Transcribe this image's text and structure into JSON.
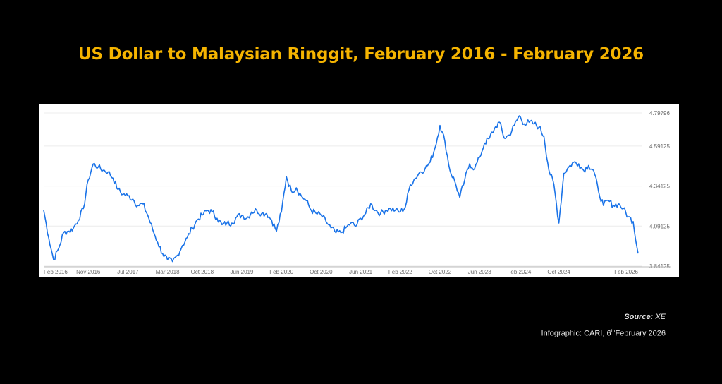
{
  "title": "US Dollar to Malaysian Ringgit, February 2016 - February 2026",
  "colors": {
    "background": "#000000",
    "title": "#f5b400",
    "panel": "#ffffff",
    "line": "#1a73e8",
    "grid": "#ececec",
    "tick_text": "#6b6b6b",
    "footer_text": "#e8e8e8"
  },
  "source": {
    "label": "Source:",
    "value": "XE"
  },
  "credit": {
    "prefix": "Infographic: CARI, 6",
    "suffix": "th",
    "rest": "February 2026"
  },
  "chart_data": {
    "type": "line",
    "title": "US Dollar to Malaysian Ringgit, February 2016 - February 2026",
    "xlabel": "",
    "ylabel": "",
    "grid": true,
    "y_axis_position": "right",
    "ylim": [
      3.84125,
      4.79796
    ],
    "yticks": [
      3.84125,
      4.09125,
      4.34125,
      4.59125,
      4.79796
    ],
    "ytick_labels": [
      "3.84125",
      "4.09125",
      "4.34125",
      "4.59125",
      "4.79796"
    ],
    "xticks": [
      {
        "label": "Feb 2016",
        "x": "2016-02"
      },
      {
        "label": "Nov 2016",
        "x": "2016-11"
      },
      {
        "label": "Jul 2017",
        "x": "2017-07"
      },
      {
        "label": "Mar 2018",
        "x": "2018-03"
      },
      {
        "label": "Oct 2018",
        "x": "2018-10"
      },
      {
        "label": "Jun 2019",
        "x": "2019-06"
      },
      {
        "label": "Feb 2020",
        "x": "2020-02"
      },
      {
        "label": "Oct 2020",
        "x": "2020-10"
      },
      {
        "label": "Jun 2021",
        "x": "2021-06"
      },
      {
        "label": "Feb 2022",
        "x": "2022-02"
      },
      {
        "label": "Oct 2022",
        "x": "2022-10"
      },
      {
        "label": "Jun 2023",
        "x": "2023-06"
      },
      {
        "label": "Feb 2024",
        "x": "2024-02"
      },
      {
        "label": "Oct 2024",
        "x": "2024-10"
      },
      {
        "label": "Feb 2026",
        "x": "2026-02"
      }
    ],
    "series": [
      {
        "x": [
          "2016-02",
          "2016-03",
          "2016-04",
          "2016-05",
          "2016-06",
          "2016-07",
          "2016-08",
          "2016-09",
          "2016-10",
          "2016-11",
          "2016-12",
          "2017-01",
          "2017-02",
          "2017-03",
          "2017-04",
          "2017-05",
          "2017-06",
          "2017-07",
          "2017-08",
          "2017-09",
          "2017-10",
          "2017-11",
          "2017-12",
          "2018-01",
          "2018-02",
          "2018-03",
          "2018-04",
          "2018-05",
          "2018-06",
          "2018-07",
          "2018-08",
          "2018-09",
          "2018-10",
          "2018-11",
          "2018-12",
          "2019-01",
          "2019-02",
          "2019-03",
          "2019-04",
          "2019-05",
          "2019-06",
          "2019-07",
          "2019-08",
          "2019-09",
          "2019-10",
          "2019-11",
          "2019-12",
          "2020-01",
          "2020-02",
          "2020-03",
          "2020-04",
          "2020-05",
          "2020-06",
          "2020-07",
          "2020-08",
          "2020-09",
          "2020-10",
          "2020-11",
          "2020-12",
          "2021-01",
          "2021-02",
          "2021-03",
          "2021-04",
          "2021-05",
          "2021-06",
          "2021-07",
          "2021-08",
          "2021-09",
          "2021-10",
          "2021-11",
          "2021-12",
          "2022-01",
          "2022-02",
          "2022-03",
          "2022-04",
          "2022-05",
          "2022-06",
          "2022-07",
          "2022-08",
          "2022-09",
          "2022-10",
          "2022-11",
          "2022-12",
          "2023-01",
          "2023-02",
          "2023-03",
          "2023-04",
          "2023-05",
          "2023-06",
          "2023-07",
          "2023-08",
          "2023-09",
          "2023-10",
          "2023-11",
          "2023-12",
          "2024-01",
          "2024-02",
          "2024-03",
          "2024-04",
          "2024-05",
          "2024-06",
          "2024-07",
          "2024-08",
          "2024-09",
          "2024-10",
          "2024-11",
          "2024-12",
          "2025-01",
          "2025-02",
          "2025-03",
          "2025-04",
          "2025-05",
          "2025-06",
          "2025-07",
          "2025-08",
          "2025-09",
          "2025-10",
          "2025-11",
          "2025-12",
          "2026-01",
          "2026-02"
        ],
        "values": [
          4.19,
          4.02,
          3.88,
          3.95,
          4.05,
          4.06,
          4.08,
          4.13,
          4.2,
          4.38,
          4.48,
          4.46,
          4.44,
          4.43,
          4.39,
          4.32,
          4.29,
          4.28,
          4.26,
          4.22,
          4.23,
          4.16,
          4.07,
          3.99,
          3.92,
          3.88,
          3.87,
          3.91,
          3.97,
          4.02,
          4.08,
          4.13,
          4.16,
          4.19,
          4.18,
          4.14,
          4.1,
          4.11,
          4.11,
          4.15,
          4.16,
          4.14,
          4.18,
          4.19,
          4.17,
          4.17,
          4.13,
          4.06,
          4.18,
          4.4,
          4.31,
          4.33,
          4.28,
          4.25,
          4.19,
          4.17,
          4.16,
          4.12,
          4.08,
          4.05,
          4.05,
          4.08,
          4.11,
          4.09,
          4.14,
          4.17,
          4.23,
          4.19,
          4.17,
          4.19,
          4.2,
          4.19,
          4.18,
          4.21,
          4.35,
          4.39,
          4.43,
          4.45,
          4.49,
          4.58,
          4.72,
          4.62,
          4.44,
          4.37,
          4.27,
          4.38,
          4.48,
          4.45,
          4.52,
          4.61,
          4.64,
          4.7,
          4.74,
          4.64,
          4.66,
          4.72,
          4.78,
          4.73,
          4.74,
          4.73,
          4.71,
          4.65,
          4.44,
          4.35,
          4.11,
          4.42,
          4.46,
          4.49,
          4.48,
          4.44,
          4.47,
          4.44,
          4.31,
          4.22,
          4.25,
          4.22,
          4.23,
          4.2,
          4.15,
          4.12,
          3.92
        ]
      }
    ]
  }
}
